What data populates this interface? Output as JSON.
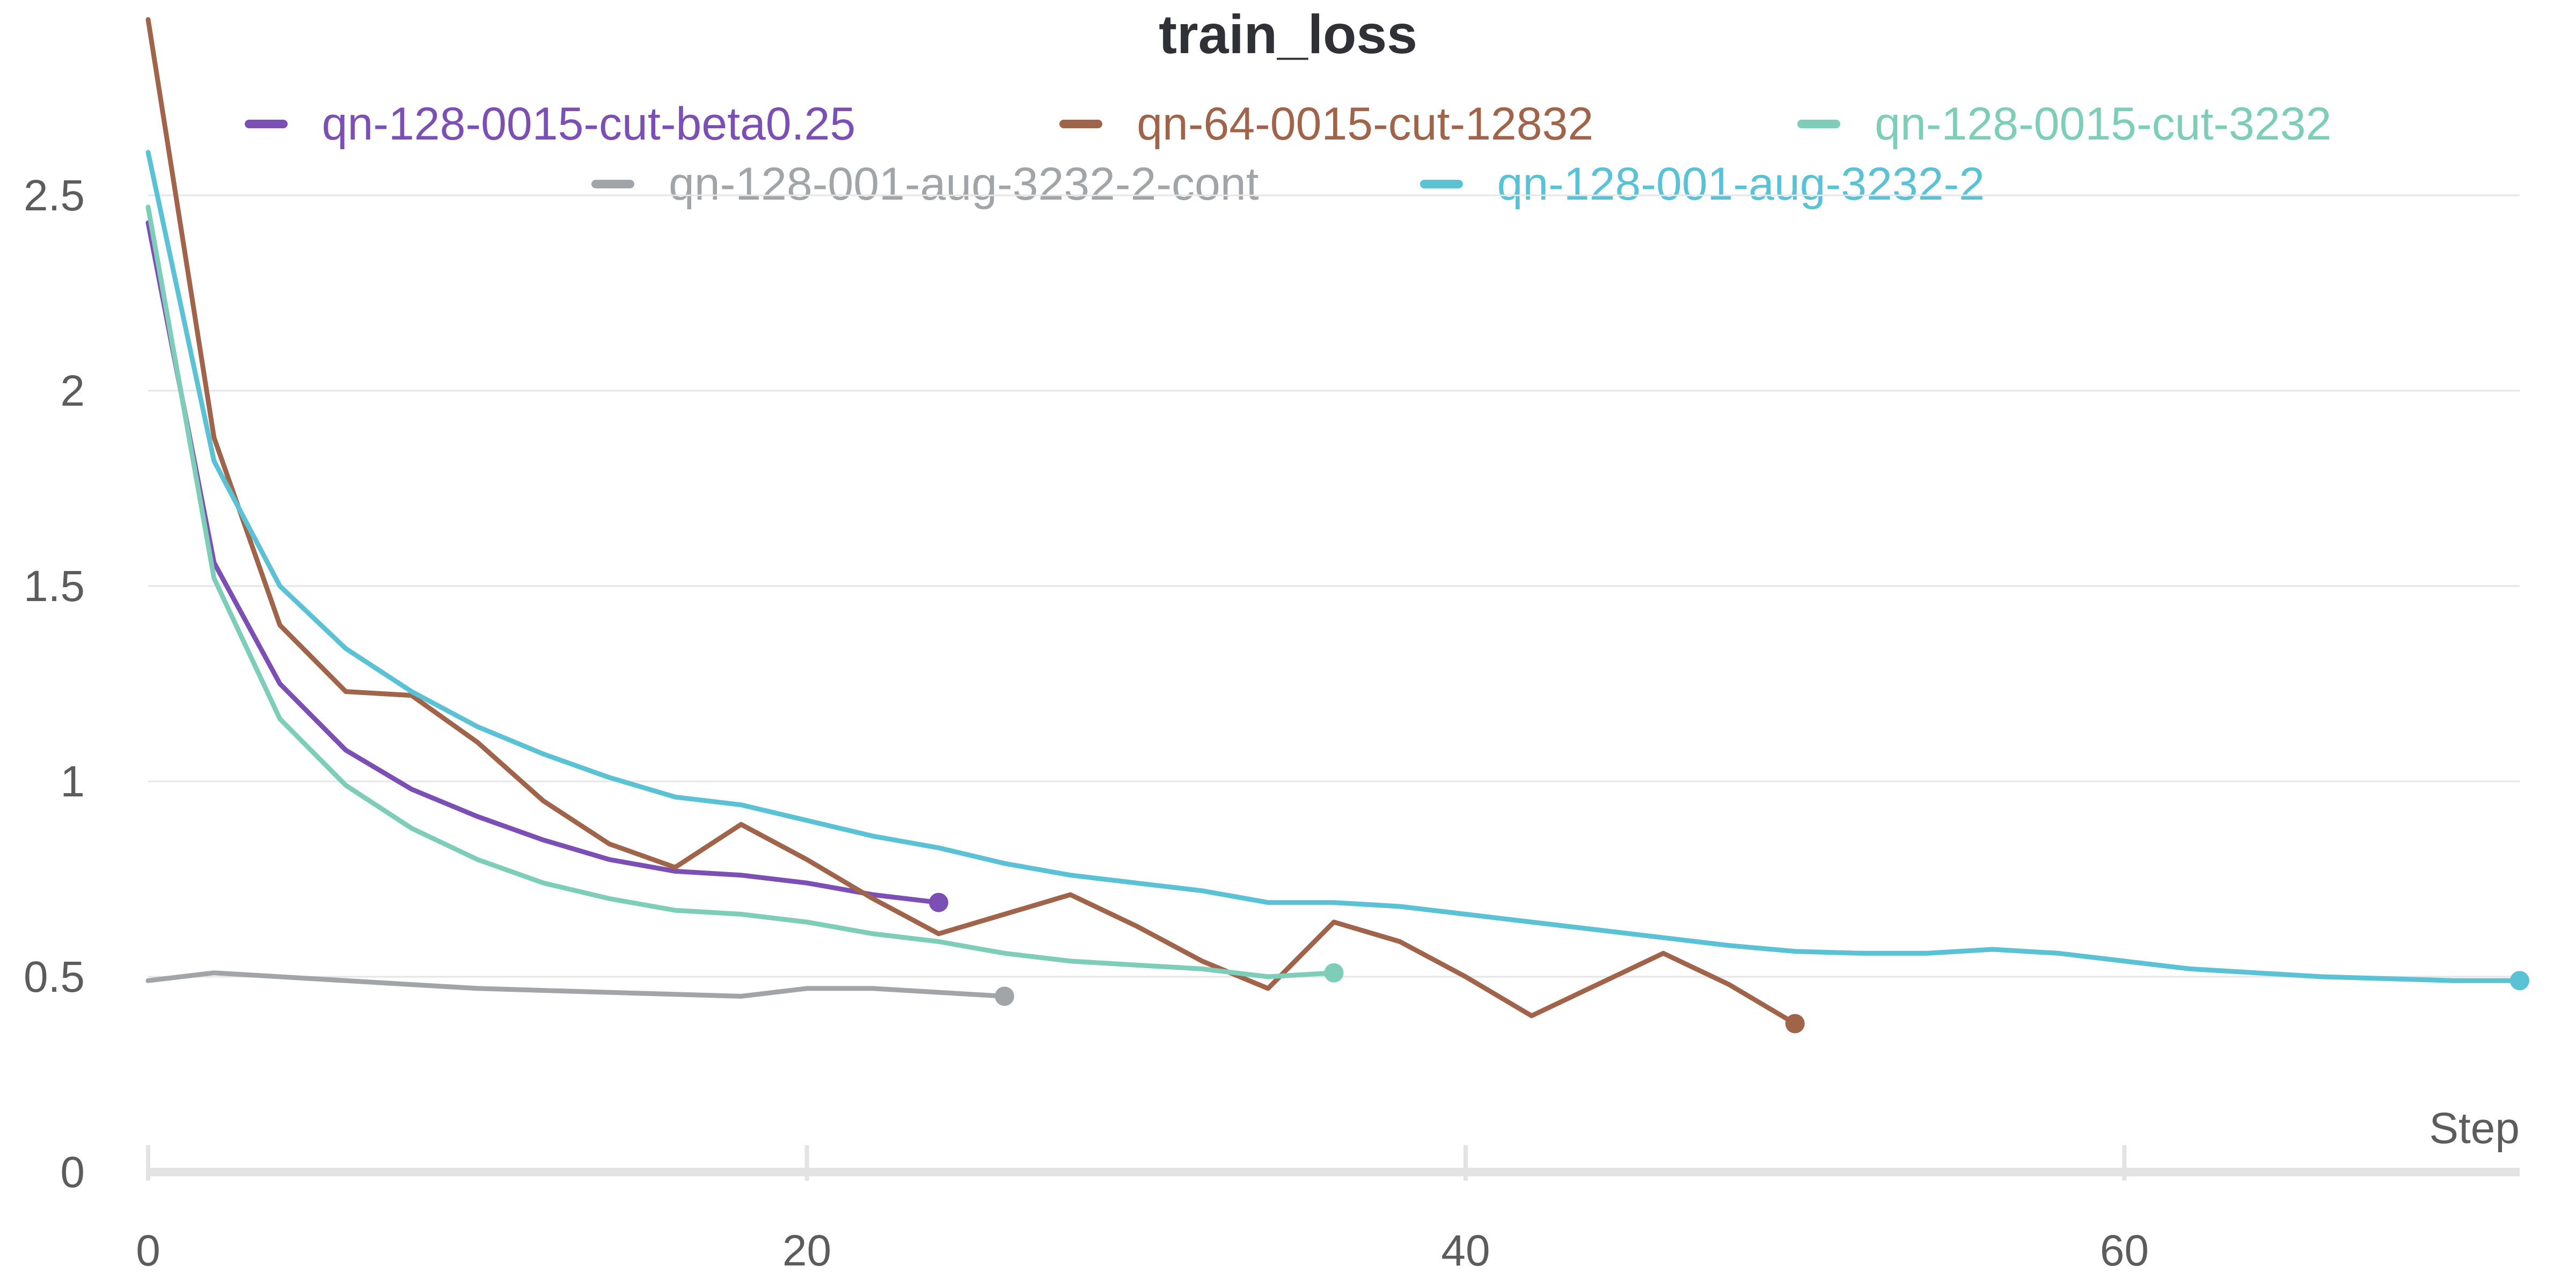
{
  "chart_data": {
    "type": "line",
    "title": "train_loss",
    "xlabel": "Step",
    "ylabel": "",
    "xlim": [
      0,
      72
    ],
    "ylim": [
      0,
      3.0
    ],
    "x_ticks": [
      0,
      20,
      40,
      60
    ],
    "x_tick_labels": [
      "0",
      "20",
      "40",
      "60"
    ],
    "y_ticks": [
      0,
      0.5,
      1,
      1.5,
      2,
      2.5
    ],
    "y_tick_labels": [
      "0",
      "0.5",
      "1",
      "1.5",
      "2",
      "2.5"
    ],
    "grid": true,
    "legend_position": "top",
    "series": [
      {
        "name": "qn-128-0015-cut-beta0.25",
        "color": "#7b4fb4",
        "x": [
          0,
          2,
          4,
          6,
          8,
          10,
          12,
          14,
          16,
          18,
          20,
          22,
          24
        ],
        "y": [
          2.43,
          1.56,
          1.25,
          1.08,
          0.98,
          0.91,
          0.85,
          0.8,
          0.77,
          0.76,
          0.74,
          0.71,
          0.69
        ]
      },
      {
        "name": "qn-64-0015-cut-12832",
        "color": "#a0644a",
        "x": [
          0,
          2,
          4,
          6,
          8,
          10,
          12,
          14,
          16,
          18,
          20,
          22,
          24,
          26,
          28,
          30,
          32,
          34,
          36,
          38,
          40,
          42,
          44,
          46,
          48,
          50
        ],
        "y": [
          2.95,
          1.88,
          1.4,
          1.23,
          1.22,
          1.1,
          0.95,
          0.84,
          0.78,
          0.89,
          0.8,
          0.7,
          0.61,
          0.66,
          0.71,
          0.63,
          0.54,
          0.47,
          0.64,
          0.59,
          0.5,
          0.4,
          0.48,
          0.56,
          0.48,
          0.38
        ]
      },
      {
        "name": "qn-128-0015-cut-3232",
        "color": "#7dcdb8",
        "x": [
          0,
          2,
          4,
          6,
          8,
          10,
          12,
          14,
          16,
          18,
          20,
          22,
          24,
          26,
          28,
          30,
          32,
          34,
          36
        ],
        "y": [
          2.47,
          1.52,
          1.16,
          0.99,
          0.88,
          0.8,
          0.74,
          0.7,
          0.67,
          0.66,
          0.64,
          0.61,
          0.59,
          0.56,
          0.54,
          0.53,
          0.52,
          0.5,
          0.51
        ]
      },
      {
        "name": "qn-128-001-aug-3232-2-cont",
        "color": "#a1a5a8",
        "x": [
          0,
          2,
          4,
          6,
          8,
          10,
          12,
          14,
          16,
          18,
          20,
          22,
          24,
          26
        ],
        "y": [
          0.49,
          0.51,
          0.5,
          0.49,
          0.48,
          0.47,
          0.465,
          0.46,
          0.455,
          0.45,
          0.47,
          0.47,
          0.46,
          0.45
        ]
      },
      {
        "name": "qn-128-001-aug-3232-2",
        "color": "#5bc2d6",
        "x": [
          0,
          2,
          4,
          6,
          8,
          10,
          12,
          14,
          16,
          18,
          20,
          22,
          24,
          26,
          28,
          30,
          32,
          34,
          36,
          38,
          40,
          42,
          44,
          46,
          48,
          50,
          52,
          54,
          56,
          58,
          60,
          62,
          64,
          66,
          68,
          70,
          72
        ],
        "y": [
          2.61,
          1.82,
          1.5,
          1.34,
          1.23,
          1.14,
          1.07,
          1.01,
          0.96,
          0.94,
          0.9,
          0.86,
          0.83,
          0.79,
          0.76,
          0.74,
          0.72,
          0.69,
          0.69,
          0.68,
          0.66,
          0.64,
          0.62,
          0.6,
          0.58,
          0.565,
          0.56,
          0.56,
          0.57,
          0.56,
          0.54,
          0.52,
          0.51,
          0.5,
          0.495,
          0.49,
          0.49
        ]
      }
    ]
  }
}
